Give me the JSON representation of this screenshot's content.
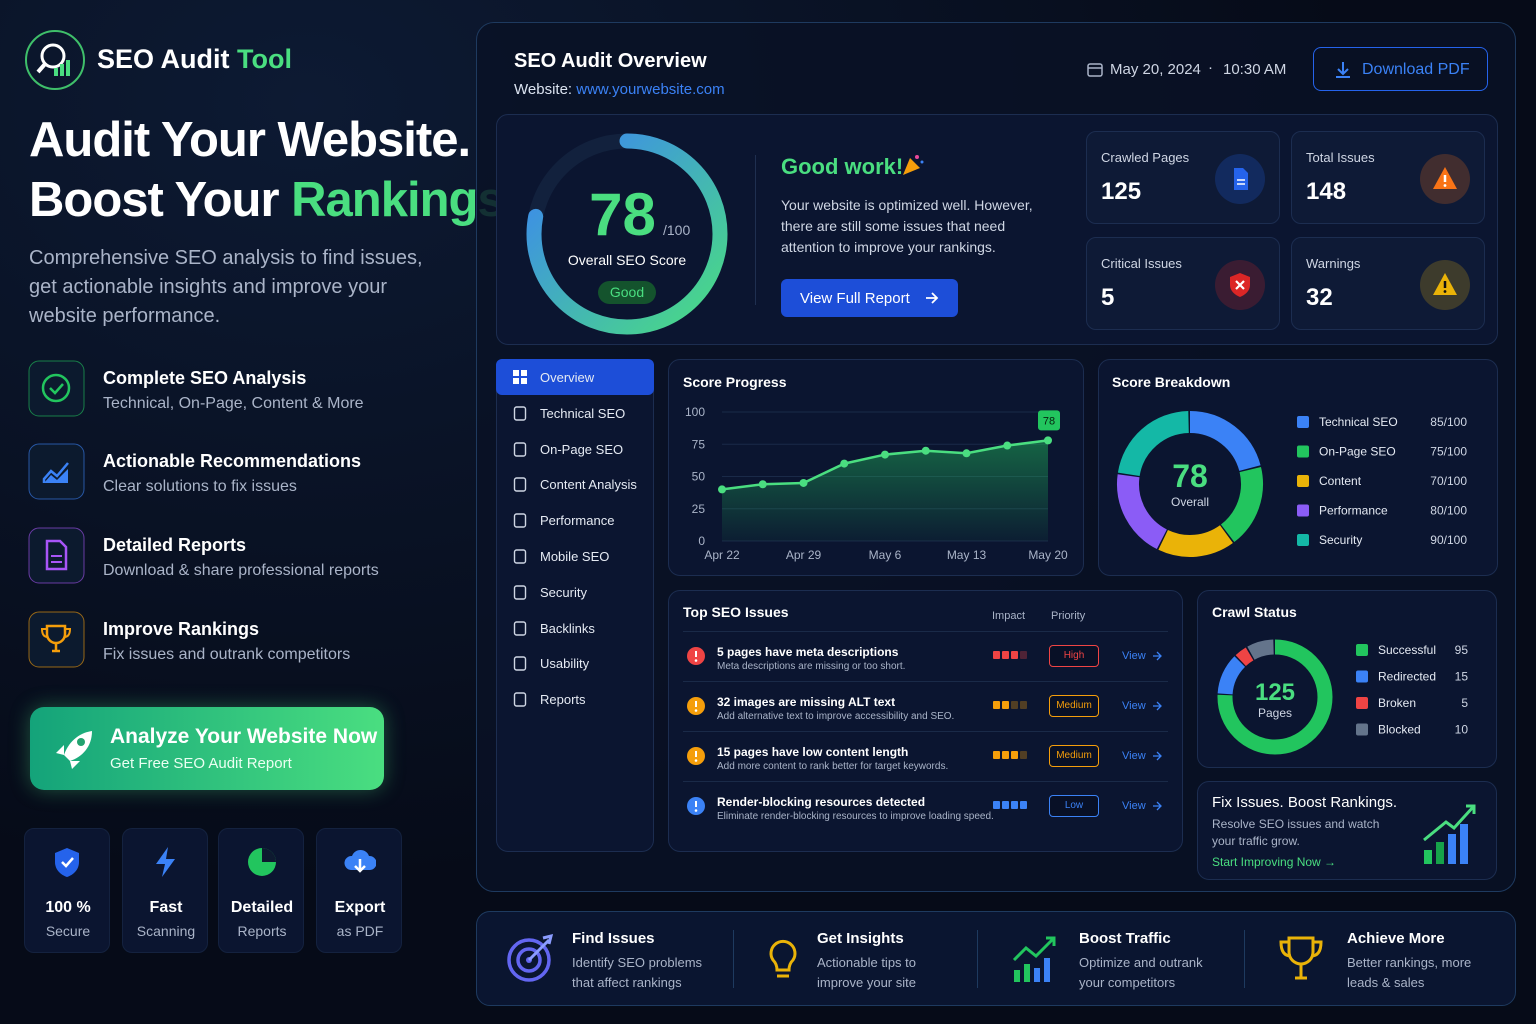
{
  "brand": {
    "name": "SEO Audit",
    "accent": "Tool"
  },
  "hero": {
    "line1": "Audit Your Website.",
    "line2": "Boost Your",
    "line2_accent": "Rankings.",
    "description": "Comprehensive SEO analysis to find issues, get actionable insights and improve your website performance."
  },
  "features": [
    {
      "title": "Complete SEO Analysis",
      "subtitle": "Technical, On-Page, Content & More"
    },
    {
      "title": "Actionable Recommendations",
      "subtitle": "Clear solutions to fix issues"
    },
    {
      "title": "Detailed Reports",
      "subtitle": "Download & share professional reports"
    },
    {
      "title": "Improve Rankings",
      "subtitle": "Fix issues and outrank competitors"
    }
  ],
  "cta": {
    "title": "Analyze Your Website Now",
    "subtitle": "Get Free SEO Audit Report"
  },
  "badges": [
    {
      "title": "100 %",
      "subtitle": "Secure"
    },
    {
      "title": "Fast",
      "subtitle": "Scanning"
    },
    {
      "title": "Detailed",
      "subtitle": "Reports"
    },
    {
      "title": "Export",
      "subtitle": "as PDF"
    }
  ],
  "header": {
    "title": "SEO Audit Overview",
    "website_label": "Website:",
    "website_url": "www.yourwebsite.com",
    "date": "May 20, 2024",
    "time": "10:30 AM",
    "download": "Download PDF"
  },
  "score": {
    "value": 78,
    "max": 100,
    "max_label": "/100",
    "label": "Overall SEO Score",
    "rating": "Good"
  },
  "message": {
    "title": "Good work!",
    "text": "Your website is optimized well. However, there are still some issues that need attention to improve your rankings.",
    "button": "View Full Report"
  },
  "stats": [
    {
      "label": "Crawled Pages",
      "value": 125,
      "color": "#2563eb"
    },
    {
      "label": "Total Issues",
      "value": 148,
      "color": "#f97316"
    },
    {
      "label": "Critical Issues",
      "value": 5,
      "color": "#dc2626"
    },
    {
      "label": "Warnings",
      "value": 32,
      "color": "#eab308"
    }
  ],
  "nav": [
    "Overview",
    "Technical SEO",
    "On-Page SEO",
    "Content Analysis",
    "Performance",
    "Mobile SEO",
    "Security",
    "Backlinks",
    "Usability",
    "Reports"
  ],
  "score_progress": {
    "type": "line",
    "title": "Score Progress",
    "x": [
      "Apr 22",
      null,
      "Apr 29",
      null,
      "May 6",
      null,
      "May 13",
      null,
      "May 20"
    ],
    "values": [
      40,
      44,
      45,
      60,
      67,
      70,
      68,
      74,
      78
    ],
    "color": "#4ade80",
    "ylim": [
      0,
      100
    ],
    "yticks": [
      0,
      25,
      50,
      75,
      100
    ],
    "grid": true
  },
  "score_breakdown": {
    "type": "donut",
    "title": "Score Breakdown",
    "center_value": 78,
    "center_label": "Overall",
    "categories": [
      "Technical SEO",
      "On-Page SEO",
      "Content",
      "Performance",
      "Security"
    ],
    "values": [
      85,
      75,
      70,
      80,
      90
    ],
    "value_labels": [
      "85/100",
      "75/100",
      "70/100",
      "80/100",
      "90/100"
    ],
    "colors": [
      "#3b82f6",
      "#22c55e",
      "#eab308",
      "#8b5cf6",
      "#14b8a6"
    ]
  },
  "top_issues": {
    "title": "Top SEO Issues",
    "columns": [
      "Impact",
      "Priority"
    ],
    "action": "View",
    "rows": [
      {
        "title": "5 pages have meta descriptions",
        "description": "Meta descriptions are missing or too short.",
        "impact": 3,
        "priority": "High",
        "color": "#ef4444"
      },
      {
        "title": "32 images are missing ALT text",
        "description": "Add alternative text to improve accessibility and SEO.",
        "impact": 2,
        "priority": "Medium",
        "color": "#f59e0b"
      },
      {
        "title": "15 pages have low content length",
        "description": "Add more content to rank better for target keywords.",
        "impact": 3,
        "priority": "Medium",
        "color": "#f59e0b"
      },
      {
        "title": "Render-blocking resources detected",
        "description": "Eliminate render-blocking resources to improve loading speed.",
        "impact": 4,
        "priority": "Low",
        "color": "#3b82f6"
      }
    ]
  },
  "crawl_status": {
    "type": "donut",
    "title": "Crawl Status",
    "center_value": 125,
    "center_label": "Pages",
    "categories": [
      "Successful",
      "Redirected",
      "Broken",
      "Blocked"
    ],
    "values": [
      95,
      15,
      5,
      10
    ],
    "colors": [
      "#22c55e",
      "#3b82f6",
      "#ef4444",
      "#64748b"
    ]
  },
  "promo": {
    "title": "Fix Issues. Boost Rankings.",
    "text": "Resolve SEO issues and watch your traffic grow.",
    "link": "Start Improving Now"
  },
  "benefits": [
    {
      "title": "Find Issues",
      "text": "Identify SEO problems that affect rankings"
    },
    {
      "title": "Get Insights",
      "text": "Actionable tips to improve your site"
    },
    {
      "title": "Boost Traffic",
      "text": "Optimize and outrank your competitors"
    },
    {
      "title": "Achieve More",
      "text": "Better rankings, more leads & sales"
    }
  ]
}
